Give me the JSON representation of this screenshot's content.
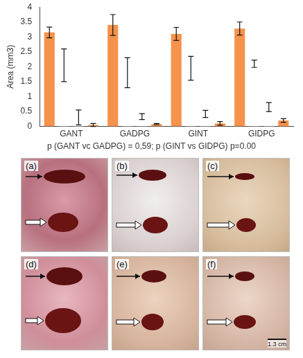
{
  "chart_data": {
    "type": "bar",
    "y_label": "Area (mm3)",
    "categories": [
      "GANT",
      "GADPG",
      "GINT",
      "GIDPG"
    ],
    "series": [
      {
        "color": "#f5924b",
        "values": [
          3.15,
          3.4,
          3.1,
          3.28
        ],
        "errors": [
          0.18,
          0.35,
          0.22,
          0.22
        ]
      },
      {
        "color": "#ffffff",
        "values": [
          2.05,
          1.8,
          1.95,
          2.1
        ],
        "errors": [
          0.55,
          0.5,
          0.4,
          0.12
        ]
      },
      {
        "color": "#ffffff",
        "values": [
          0.3,
          0.33,
          0.42,
          0.65
        ],
        "errors": [
          0.25,
          0.1,
          0.12,
          0.15
        ]
      },
      {
        "color": "#f5924b",
        "values": [
          0.05,
          0.08,
          0.1,
          0.2
        ],
        "errors": [
          0.05,
          0.02,
          0.06,
          0.06
        ]
      }
    ],
    "ylim": [
      0,
      4
    ],
    "yticks": [
      0,
      0.5,
      1,
      1.5,
      2,
      2.5,
      3,
      3.5,
      4
    ],
    "grid": false,
    "annotation": "p (GANT vc GADPG) = 0,59; p (GINT vs GIDPG) p=0.00"
  },
  "figure": {
    "panels": [
      "(a)",
      "(b)",
      "(c)",
      "(d)",
      "(e)",
      "(f)"
    ],
    "scale_bar": "1.3 cm"
  }
}
